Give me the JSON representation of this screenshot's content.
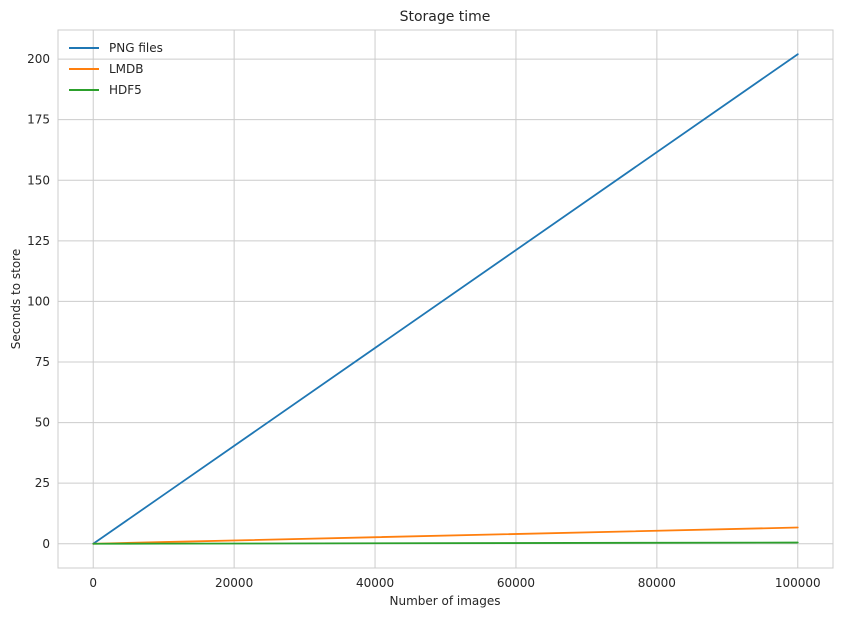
{
  "chart_data": {
    "type": "line",
    "title": "Storage time",
    "xlabel": "Number of images",
    "ylabel": "Seconds to store",
    "xlim": [
      -5000,
      105000
    ],
    "ylim": [
      -10,
      212
    ],
    "xticks": [
      0,
      20000,
      40000,
      60000,
      80000,
      100000
    ],
    "xtick_labels": [
      "0",
      "20000",
      "40000",
      "60000",
      "80000",
      "100000"
    ],
    "yticks": [
      0,
      25,
      50,
      75,
      100,
      125,
      150,
      175,
      200
    ],
    "ytick_labels": [
      "0",
      "25",
      "50",
      "75",
      "100",
      "125",
      "150",
      "175",
      "200"
    ],
    "grid": true,
    "legend_position": "top-left",
    "x": [
      10,
      100,
      1000,
      10000,
      100000
    ],
    "series": [
      {
        "name": "PNG files",
        "color": "#1f77b4",
        "values": [
          0.02,
          0.2,
          2.0,
          20.2,
          202.0
        ]
      },
      {
        "name": "LMDB",
        "color": "#ff7f0e",
        "values": [
          0.001,
          0.007,
          0.07,
          0.7,
          6.7
        ]
      },
      {
        "name": "HDF5",
        "color": "#2ca02c",
        "values": [
          0.0001,
          0.0005,
          0.005,
          0.05,
          0.5
        ]
      }
    ]
  }
}
